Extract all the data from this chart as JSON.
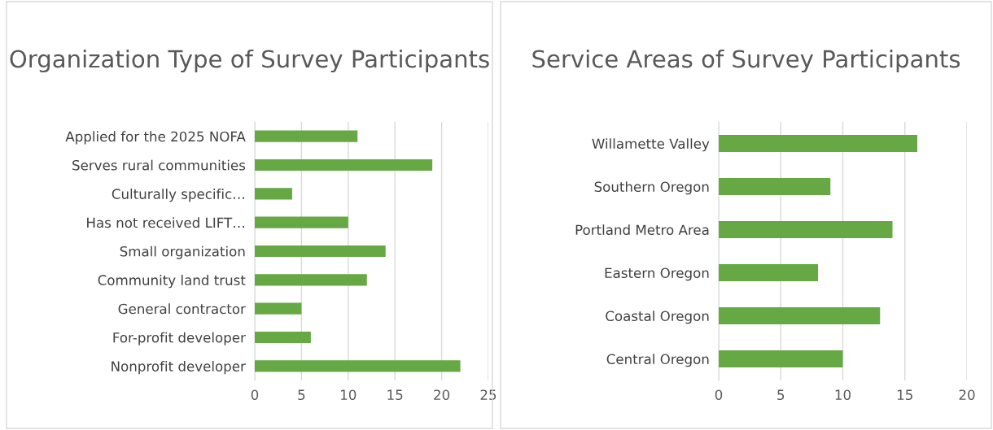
{
  "chart_data": [
    {
      "type": "bar",
      "orientation": "horizontal",
      "title": "Organization Type of Survey Participants",
      "categories": [
        "Applied for the 2025 NOFA",
        "Serves rural communities",
        "Culturally specific…",
        "Has not received LIFT…",
        "Small organization",
        "Community land trust",
        "General contractor",
        "For-profit developer",
        "Nonprofit developer"
      ],
      "values": [
        11,
        19,
        4,
        10,
        14,
        12,
        5,
        6,
        22
      ],
      "color": "#65a844",
      "xlim": [
        0,
        25
      ],
      "xticks": [
        0,
        5,
        10,
        15,
        20,
        25
      ],
      "grid": "x"
    },
    {
      "type": "bar",
      "orientation": "horizontal",
      "title": "Service Areas of Survey Participants",
      "categories": [
        "Willamette Valley",
        "Southern Oregon",
        "Portland Metro Area",
        "Eastern Oregon",
        "Coastal Oregon",
        "Central Oregon"
      ],
      "values": [
        16,
        9,
        14,
        8,
        13,
        10
      ],
      "color": "#65a844",
      "xlim": [
        0,
        20
      ],
      "xticks": [
        0,
        5,
        10,
        15,
        20
      ],
      "grid": "x"
    }
  ]
}
